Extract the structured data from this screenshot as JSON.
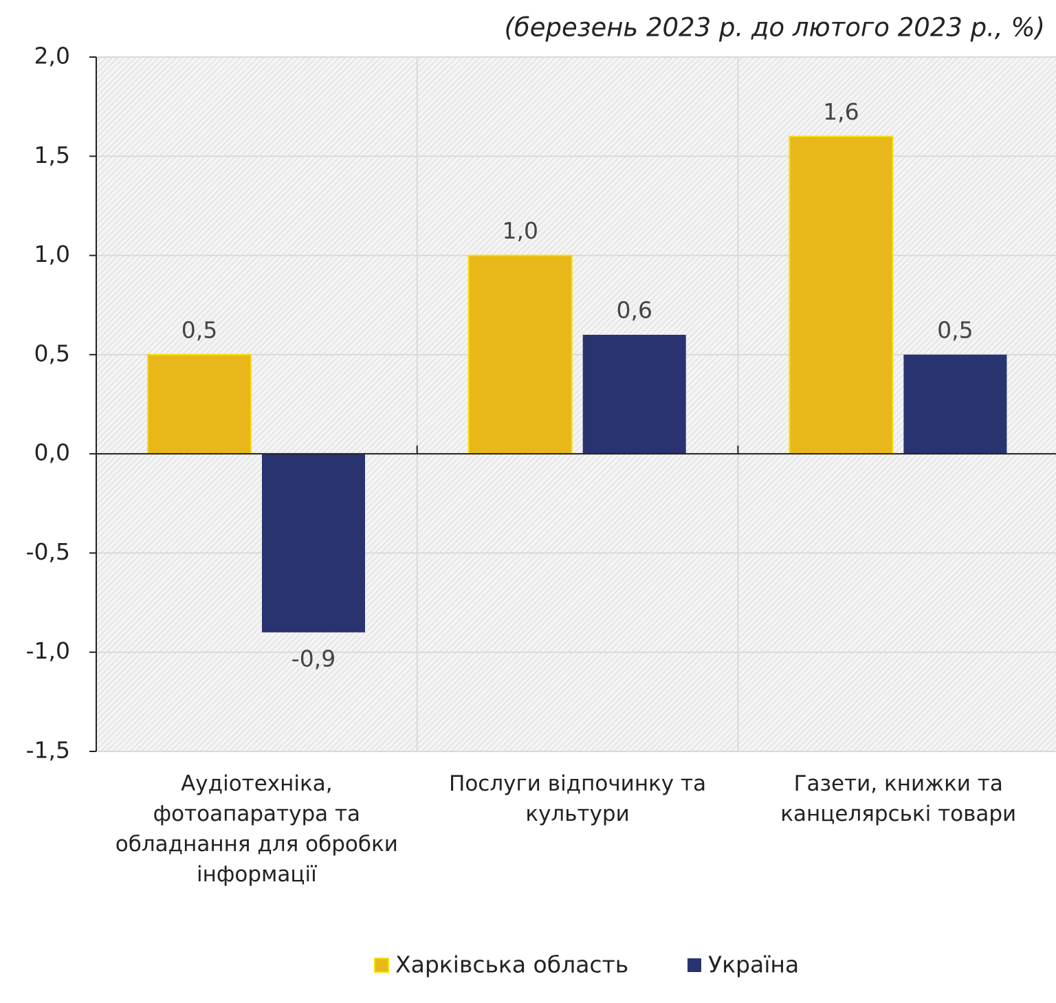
{
  "chart_data": {
    "type": "bar",
    "title": "(березень 2023 р. до лютого 2023 р., %)",
    "categories": [
      "Аудіотехніка, фотоапаратура та обладнання для обробки інформації",
      "Послуги відпочинку та культури",
      "Газети, книжки та канцелярські товари"
    ],
    "series": [
      {
        "name": "Харківська область",
        "color": "#e8b81a",
        "values": [
          0.5,
          1.0,
          1.6
        ],
        "value_labels": [
          "0,5",
          "1,0",
          "1,6"
        ]
      },
      {
        "name": "Україна",
        "color": "#29336f",
        "values": [
          -0.9,
          0.6,
          0.5
        ],
        "value_labels": [
          "-0,9",
          "0,6",
          "0,5"
        ]
      }
    ],
    "ylim": [
      -1.5,
      2.0
    ],
    "yticks": [
      {
        "value": -1.5,
        "label": "-1,5"
      },
      {
        "value": -1.0,
        "label": "-1,0"
      },
      {
        "value": -0.5,
        "label": "-0,5"
      },
      {
        "value": 0,
        "label": "0,0"
      },
      {
        "value": 0.5,
        "label": "0,5"
      },
      {
        "value": 1.0,
        "label": "1,0"
      },
      {
        "value": 1.5,
        "label": "1,5"
      },
      {
        "value": 2.0,
        "label": "2,0"
      }
    ],
    "grid": true,
    "legend": "bottom"
  }
}
